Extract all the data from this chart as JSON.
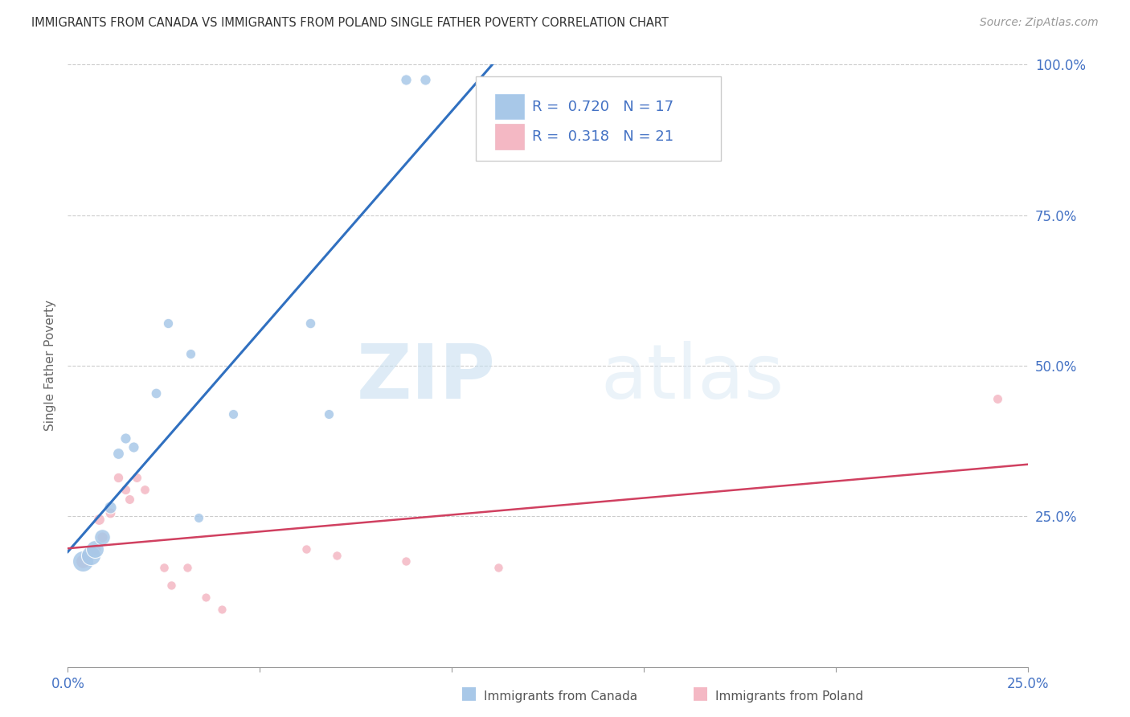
{
  "title": "IMMIGRANTS FROM CANADA VS IMMIGRANTS FROM POLAND SINGLE FATHER POVERTY CORRELATION CHART",
  "source": "Source: ZipAtlas.com",
  "ylabel": "Single Father Poverty",
  "R_canada": 0.72,
  "N_canada": 17,
  "R_poland": 0.318,
  "N_poland": 21,
  "canada_color": "#a8c8e8",
  "poland_color": "#f4b8c4",
  "canada_line_color": "#3070c0",
  "poland_line_color": "#d04060",
  "watermark_zip": "ZIP",
  "watermark_atlas": "atlas",
  "canada_points": [
    [
      0.004,
      0.175,
      350
    ],
    [
      0.006,
      0.185,
      300
    ],
    [
      0.007,
      0.195,
      250
    ],
    [
      0.009,
      0.215,
      200
    ],
    [
      0.011,
      0.265,
      120
    ],
    [
      0.013,
      0.355,
      100
    ],
    [
      0.015,
      0.38,
      90
    ],
    [
      0.017,
      0.365,
      90
    ],
    [
      0.023,
      0.455,
      85
    ],
    [
      0.026,
      0.57,
      80
    ],
    [
      0.032,
      0.52,
      78
    ],
    [
      0.034,
      0.248,
      75
    ],
    [
      0.043,
      0.42,
      78
    ],
    [
      0.063,
      0.57,
      82
    ],
    [
      0.068,
      0.42,
      78
    ],
    [
      0.088,
      0.975,
      92
    ],
    [
      0.093,
      0.975,
      92
    ]
  ],
  "poland_points": [
    [
      0.004,
      0.175,
      160
    ],
    [
      0.005,
      0.185,
      130
    ],
    [
      0.007,
      0.195,
      110
    ],
    [
      0.008,
      0.245,
      100
    ],
    [
      0.009,
      0.215,
      90
    ],
    [
      0.011,
      0.255,
      85
    ],
    [
      0.013,
      0.315,
      80
    ],
    [
      0.015,
      0.295,
      78
    ],
    [
      0.016,
      0.278,
      75
    ],
    [
      0.018,
      0.315,
      75
    ],
    [
      0.02,
      0.295,
      72
    ],
    [
      0.025,
      0.165,
      70
    ],
    [
      0.027,
      0.135,
      68
    ],
    [
      0.031,
      0.165,
      68
    ],
    [
      0.036,
      0.115,
      65
    ],
    [
      0.04,
      0.095,
      65
    ],
    [
      0.062,
      0.195,
      68
    ],
    [
      0.07,
      0.185,
      68
    ],
    [
      0.088,
      0.175,
      68
    ],
    [
      0.112,
      0.165,
      68
    ],
    [
      0.242,
      0.445,
      75
    ]
  ],
  "xlim": [
    0.0,
    0.25
  ],
  "ylim": [
    0.0,
    1.0
  ],
  "xtick_positions": [
    0.0,
    0.05,
    0.1,
    0.15,
    0.2,
    0.25
  ],
  "yticks_right": [
    0.0,
    0.25,
    0.5,
    0.75,
    1.0
  ],
  "ytick_labels_right": [
    "",
    "25.0%",
    "50.0%",
    "75.0%",
    "100.0%"
  ],
  "legend_canada": "Immigrants from Canada",
  "legend_poland": "Immigrants from Poland",
  "canada_trend": [
    0.0,
    0.25
  ],
  "poland_trend": [
    0.0,
    0.25
  ]
}
